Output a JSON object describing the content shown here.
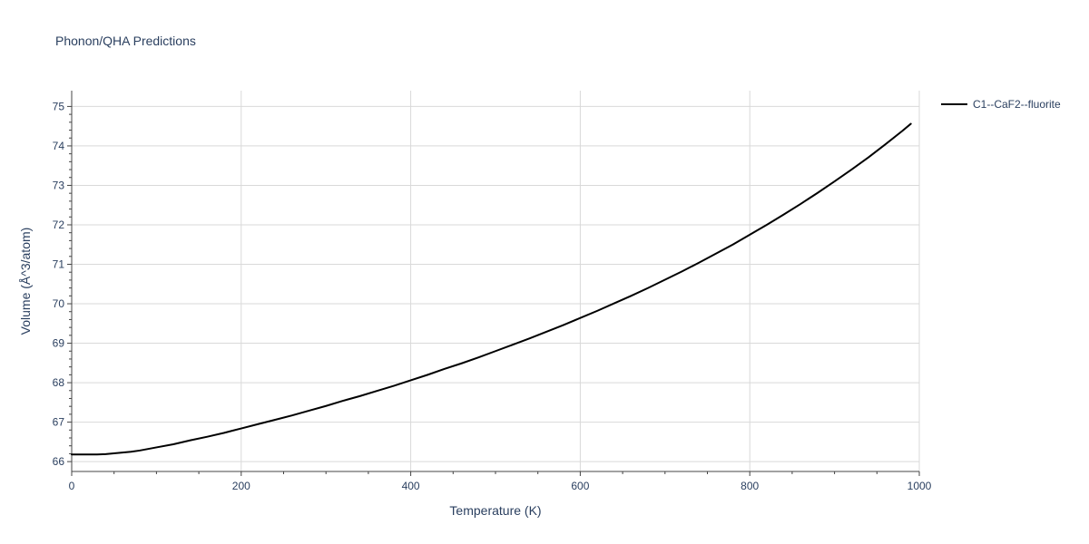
{
  "chart_data": {
    "type": "line",
    "title": "Phonon/QHA Predictions",
    "xlabel": "Temperature (K)",
    "ylabel": "Volume (Å^3/atom)",
    "xlim": [
      0,
      1000
    ],
    "ylim": [
      65.75,
      75.4
    ],
    "xticks": [
      0,
      200,
      400,
      600,
      800,
      1000
    ],
    "xtick_labels": [
      "0",
      "200",
      "400",
      "600",
      "800",
      "1000"
    ],
    "yticks": [
      66,
      67,
      68,
      69,
      70,
      71,
      72,
      73,
      74,
      75
    ],
    "ytick_labels": [
      "66",
      "67",
      "68",
      "69",
      "70",
      "71",
      "72",
      "73",
      "74",
      "75"
    ],
    "grid": true,
    "legend_position": "top-right",
    "series": [
      {
        "name": "C1--CaF2--fluorite",
        "color": "#000000",
        "x": [
          0,
          10,
          20,
          30,
          40,
          50,
          60,
          70,
          80,
          100,
          120,
          140,
          160,
          180,
          200,
          220,
          240,
          260,
          280,
          300,
          320,
          340,
          360,
          380,
          400,
          420,
          440,
          460,
          480,
          500,
          520,
          540,
          560,
          580,
          600,
          620,
          640,
          660,
          680,
          700,
          720,
          740,
          760,
          780,
          800,
          820,
          840,
          860,
          880,
          900,
          920,
          940,
          960,
          980,
          990
        ],
        "y": [
          66.18,
          66.18,
          66.18,
          66.18,
          66.19,
          66.21,
          66.23,
          66.25,
          66.28,
          66.36,
          66.44,
          66.54,
          66.63,
          66.73,
          66.84,
          66.95,
          67.06,
          67.17,
          67.29,
          67.41,
          67.54,
          67.66,
          67.79,
          67.92,
          68.06,
          68.2,
          68.35,
          68.49,
          68.64,
          68.8,
          68.96,
          69.12,
          69.29,
          69.46,
          69.64,
          69.82,
          70.01,
          70.2,
          70.4,
          70.61,
          70.82,
          71.04,
          71.27,
          71.5,
          71.75,
          72.0,
          72.26,
          72.53,
          72.81,
          73.1,
          73.4,
          73.71,
          74.04,
          74.38,
          74.56
        ]
      }
    ]
  }
}
